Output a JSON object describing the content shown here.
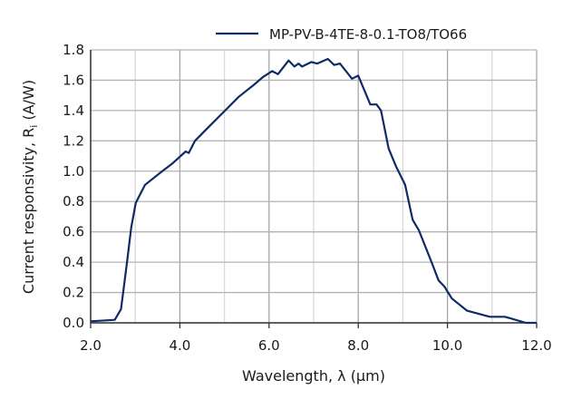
{
  "chart_data": {
    "type": "line",
    "title": "",
    "xlabel": "Wavelength, λ (µm)",
    "ylabel_main": "Current responsivity, R",
    "ylabel_sub": "i",
    "ylabel_unit": " (A/W)",
    "xlim": [
      2.0,
      12.0
    ],
    "ylim": [
      0.0,
      1.8
    ],
    "xticks": [
      "2.0",
      "4.0",
      "6.0",
      "8.0",
      "10.0",
      "12.0"
    ],
    "xtick_values": [
      2,
      4,
      6,
      8,
      10,
      12
    ],
    "yticks": [
      "0.0",
      "0.2",
      "0.4",
      "0.6",
      "0.8",
      "1.0",
      "1.2",
      "1.4",
      "1.6",
      "1.8"
    ],
    "ytick_values": [
      0,
      0.2,
      0.4,
      0.6,
      0.8,
      1.0,
      1.2,
      1.4,
      1.6,
      1.8
    ],
    "grid": true,
    "legend_position": "top-right",
    "series": [
      {
        "name": "MP-PV-B-4TE-8-0.1-TO8/TO66",
        "color": "#0f2a66",
        "x": [
          2.0,
          2.54,
          2.68,
          2.81,
          2.91,
          3.01,
          3.22,
          3.56,
          3.83,
          4.13,
          4.2,
          4.34,
          4.64,
          4.98,
          5.32,
          5.66,
          5.86,
          6.07,
          6.2,
          6.44,
          6.57,
          6.66,
          6.74,
          6.95,
          7.08,
          7.32,
          7.46,
          7.59,
          7.86,
          8.0,
          8.27,
          8.41,
          8.51,
          8.68,
          8.85,
          9.05,
          9.22,
          9.36,
          9.63,
          9.8,
          9.93,
          10.1,
          10.44,
          10.95,
          11.29,
          11.76,
          12.0
        ],
        "y": [
          0.01,
          0.02,
          0.09,
          0.39,
          0.63,
          0.79,
          0.91,
          0.99,
          1.05,
          1.13,
          1.12,
          1.2,
          1.29,
          1.39,
          1.49,
          1.57,
          1.62,
          1.66,
          1.64,
          1.73,
          1.69,
          1.71,
          1.69,
          1.72,
          1.71,
          1.74,
          1.7,
          1.71,
          1.61,
          1.63,
          1.44,
          1.44,
          1.4,
          1.15,
          1.03,
          0.91,
          0.68,
          0.61,
          0.41,
          0.28,
          0.24,
          0.16,
          0.08,
          0.04,
          0.04,
          0.0,
          0.0
        ]
      }
    ]
  }
}
